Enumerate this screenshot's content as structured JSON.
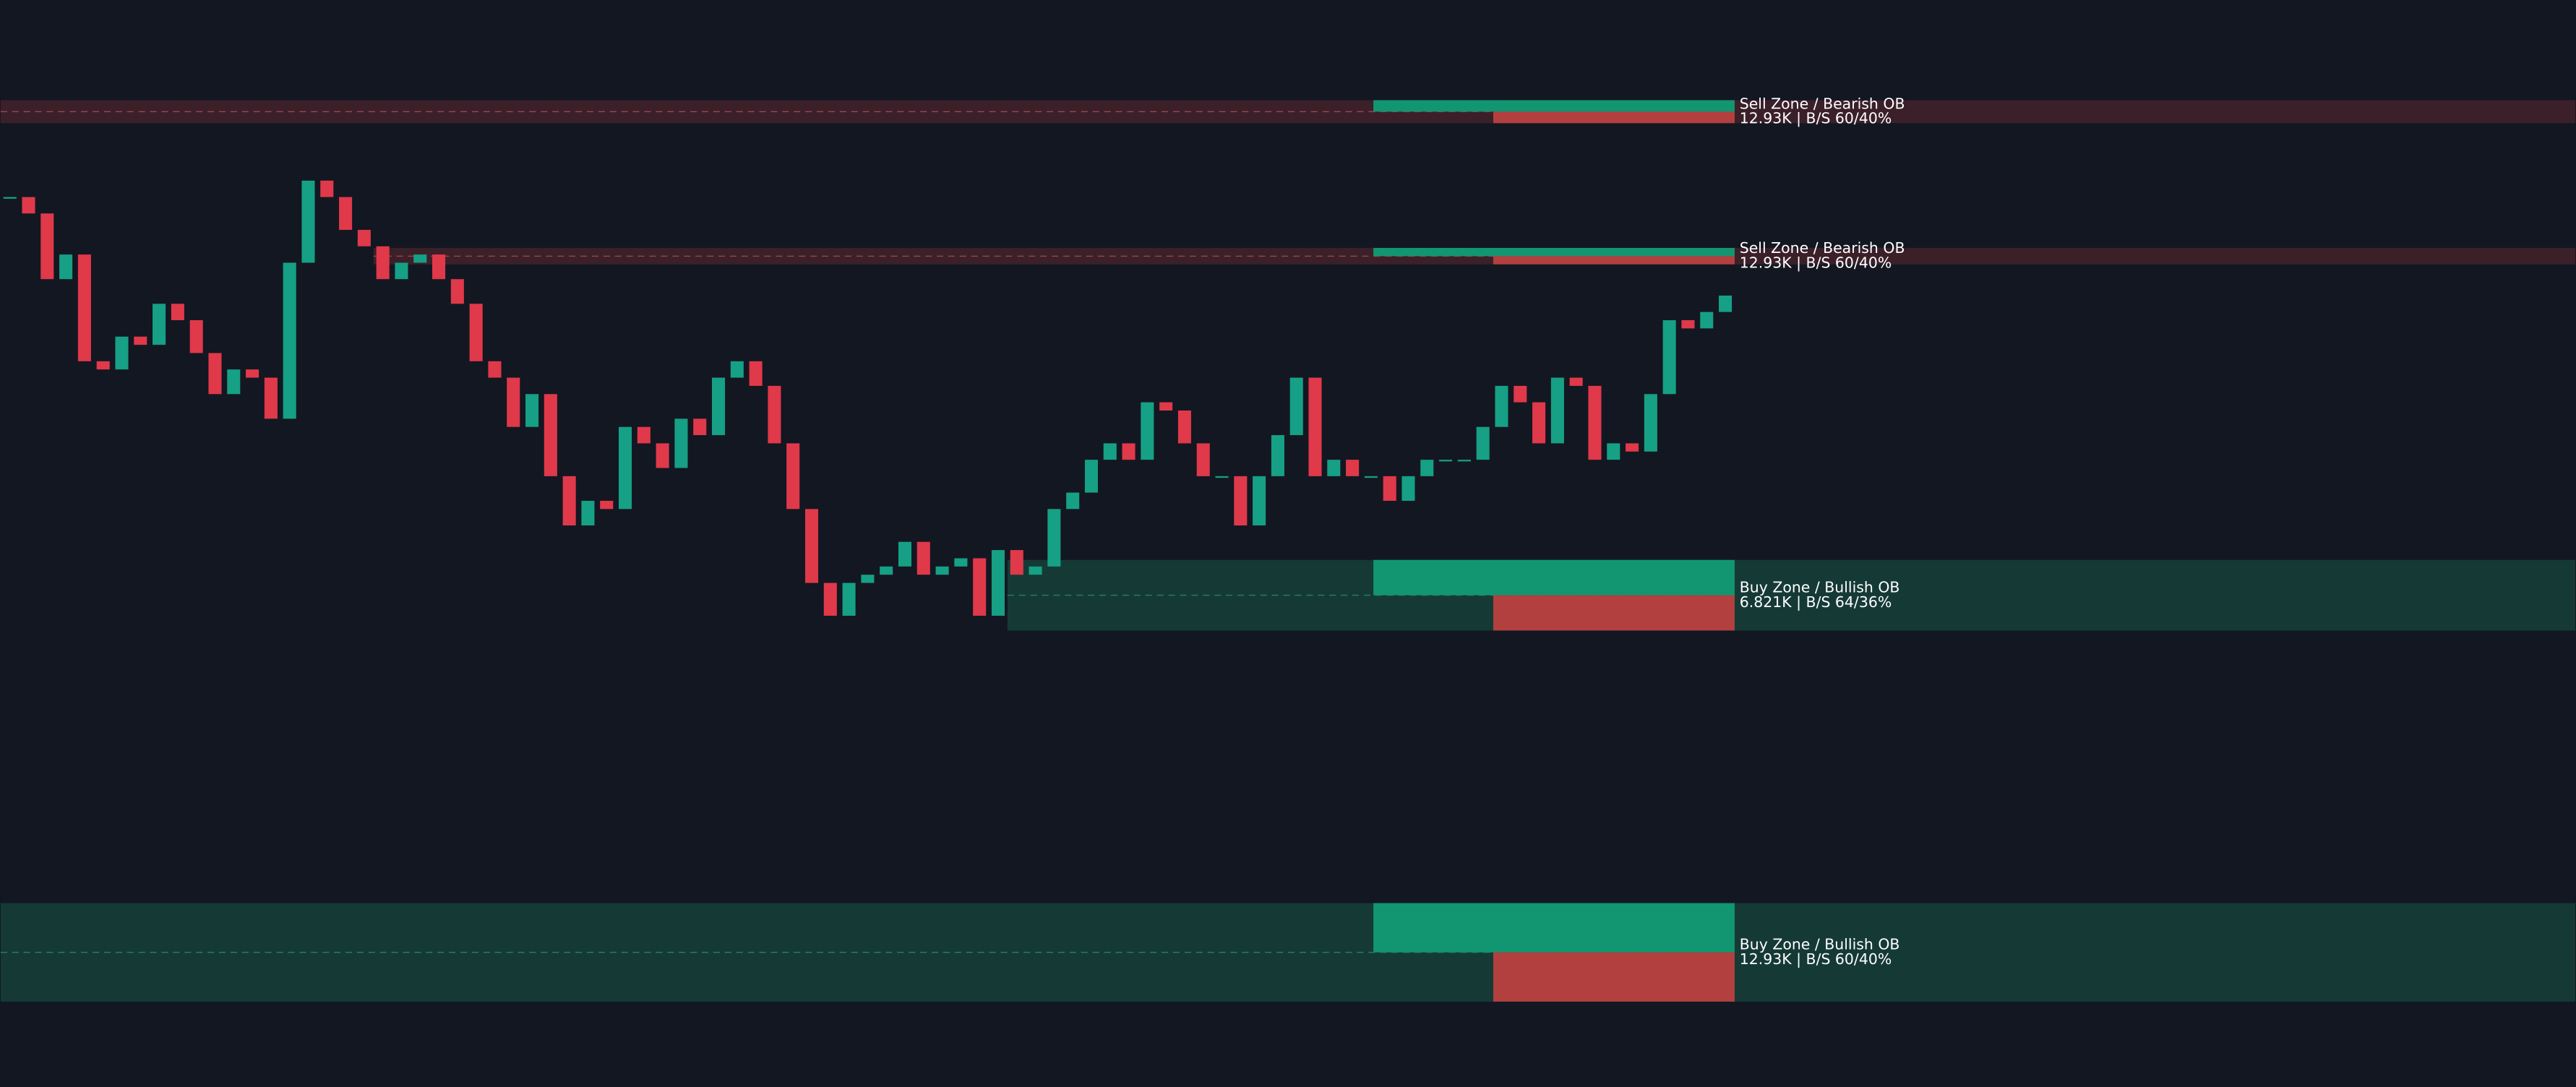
{
  "chart_data": {
    "type": "candlestick",
    "series": [
      {
        "values": [
          542,
          532,
          492,
          507,
          442,
          437,
          457,
          452,
          477,
          467,
          447,
          422,
          437,
          432,
          407,
          502,
          552,
          542,
          522,
          512,
          492,
          502,
          507,
          492,
          477,
          442,
          432,
          402,
          422,
          372,
          342,
          357,
          352,
          402,
          392,
          377,
          407,
          397,
          432,
          442,
          427,
          392,
          352,
          307,
          287,
          307,
          312,
          317,
          332,
          312,
          317,
          322,
          287,
          327,
          312,
          317,
          352,
          362,
          382,
          392,
          382,
          417,
          412,
          392,
          372,
          372,
          342,
          372,
          397,
          432,
          372,
          382,
          372,
          372,
          357,
          372,
          382,
          382,
          382,
          402,
          427,
          417,
          392,
          432,
          427,
          382,
          392,
          387,
          422,
          467,
          462,
          472,
          482
        ]
      }
    ],
    "up_color": "#16a085",
    "down_color": "#e0394a",
    "ylim": [
      0,
      662
    ],
    "zones": [
      {
        "title": "Sell Zone / Bearish OB",
        "detail": "12.93K | B/S 60/40%",
        "top": 601,
        "bottom": 587,
        "start": 0,
        "color": "#3b2029",
        "line_color": "#a04450"
      },
      {
        "title": "Sell Zone / Bearish OB",
        "detail": "12.93K | B/S 60/40%",
        "top": 511,
        "bottom": 501,
        "start": 20,
        "color": "#3b2029",
        "line_color": "#a04450"
      },
      {
        "title": "Buy Zone / Bullish OB",
        "detail": "6.821K | B/S 64/36%",
        "top": 321,
        "bottom": 278,
        "start": 54,
        "color": "#153a36",
        "line_color": "#2f7a6a"
      },
      {
        "title": "Buy Zone / Bullish OB",
        "detail": "12.93K | B/S 60/40%",
        "top": 112,
        "bottom": 52,
        "start": 0,
        "color": "#153a36",
        "line_color": "#2f7a6a"
      }
    ]
  }
}
